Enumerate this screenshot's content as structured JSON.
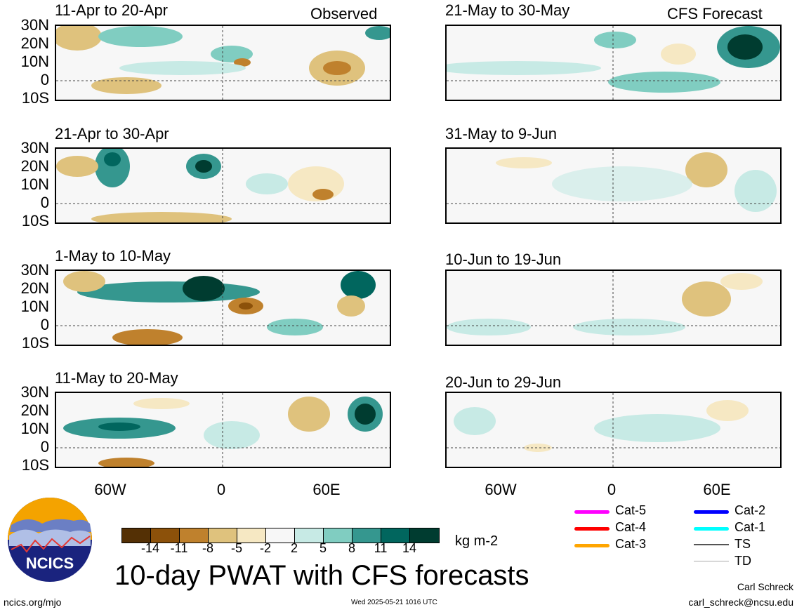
{
  "panels": [
    {
      "title": "11-Apr to 20-Apr",
      "tag": "Observed"
    },
    {
      "title": "21-May to 30-May",
      "tag": "CFS Forecast"
    },
    {
      "title": "21-Apr to 30-Apr",
      "tag": ""
    },
    {
      "title": "31-May to 9-Jun",
      "tag": ""
    },
    {
      "title": "1-May to 10-May",
      "tag": ""
    },
    {
      "title": "10-Jun to 19-Jun",
      "tag": ""
    },
    {
      "title": "11-May to 20-May",
      "tag": ""
    },
    {
      "title": "20-Jun to 29-Jun",
      "tag": ""
    }
  ],
  "lat_labels": [
    "30N",
    "20N",
    "10N",
    "0",
    "10S"
  ],
  "lon_labels": [
    "60W",
    "0",
    "60E"
  ],
  "colorbar": {
    "unit": "kg m-2",
    "ticks": [
      "-14",
      "-11",
      "-8",
      "-5",
      "-2",
      "2",
      "5",
      "8",
      "11",
      "14"
    ],
    "colors": [
      "#543005",
      "#8c510a",
      "#bf812d",
      "#dfc27d",
      "#f6e8c3",
      "#f7f7f7",
      "#c7eae5",
      "#80cdc1",
      "#35978f",
      "#01665e",
      "#003c30"
    ]
  },
  "legend": [
    {
      "label": "Cat-5",
      "color": "#ff00ff"
    },
    {
      "label": "Cat-4",
      "color": "#ff0000"
    },
    {
      "label": "Cat-3",
      "color": "#ffa500"
    },
    {
      "label": "Cat-2",
      "color": "#0000ff"
    },
    {
      "label": "Cat-1",
      "color": "#00ffff"
    },
    {
      "label": "TS",
      "color": "#555555"
    },
    {
      "label": "TD",
      "color": "#aaaaaa"
    }
  ],
  "logo_text": "NCICS",
  "main_title": "10-day PWAT with CFS forecasts",
  "footer": {
    "left": "ncics.org/mjo",
    "center": "Wed 2025-05-21 1016 UTC",
    "author": "Carl Schreck",
    "email": "carl_schreck@ncsu.edu"
  }
}
